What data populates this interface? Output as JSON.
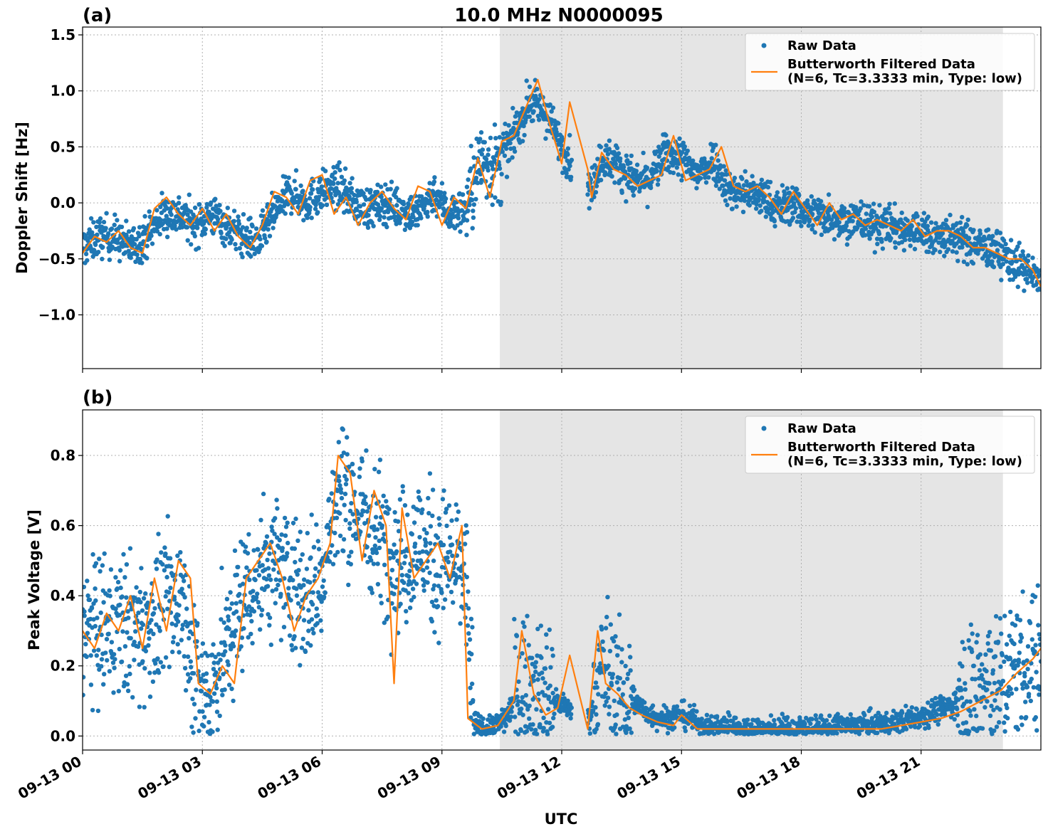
{
  "title": "10.0 MHz N0000095",
  "xlabel": "UTC",
  "colors": {
    "raw": "#1f77b4",
    "filtered": "#ff7f0e",
    "shade": "#e5e5e5"
  },
  "legend": {
    "raw_label": "Raw Data",
    "filtered_label_line1": "Butterworth Filtered Data",
    "filtered_label_line2": "(N=6, Tc=3.3333 min, Type: low)"
  },
  "chart_data": [
    {
      "type": "scatter",
      "panel_label": "(a)",
      "ylabel": "Doppler Shift [Hz]",
      "x_axis": {
        "type": "time",
        "start": "09-13 00:00",
        "end": "09-14 00:00",
        "ticks": [
          "09-13 00",
          "09-13 03",
          "09-13 06",
          "09-13 09",
          "09-13 12",
          "09-13 15",
          "09-13 18",
          "09-13 21"
        ]
      },
      "ylim": [
        -1.48,
        1.57
      ],
      "yticks": [
        -1.0,
        -0.5,
        0.0,
        0.5,
        1.0,
        1.5
      ],
      "ytick_labels": [
        "−1.0",
        "−0.5",
        "0.0",
        "0.5",
        "1.0",
        "1.5"
      ],
      "shaded_region_hours": [
        10.45,
        23.05
      ],
      "grid": true,
      "legend_position": "top-right",
      "series": [
        {
          "name": "Butterworth Filtered Data",
          "style": "line",
          "x_hours": [
            0,
            0.3,
            0.6,
            0.9,
            1.2,
            1.5,
            1.8,
            2.1,
            2.4,
            2.7,
            3.0,
            3.3,
            3.6,
            3.9,
            4.2,
            4.5,
            4.8,
            5.1,
            5.4,
            5.7,
            6.0,
            6.3,
            6.6,
            6.9,
            7.2,
            7.5,
            7.8,
            8.1,
            8.4,
            8.7,
            9.0,
            9.3,
            9.6,
            9.9,
            10.2,
            10.5,
            10.8,
            11.1,
            11.4,
            11.7,
            12.0,
            12.2,
            12.65,
            12.75,
            13.0,
            13.3,
            13.6,
            13.9,
            14.2,
            14.5,
            14.8,
            15.1,
            15.4,
            15.7,
            16.0,
            16.3,
            16.6,
            16.9,
            17.2,
            17.5,
            17.8,
            18.1,
            18.4,
            18.7,
            19.0,
            19.3,
            19.6,
            19.9,
            20.2,
            20.5,
            20.8,
            21.1,
            21.4,
            21.7,
            22.0,
            22.3,
            22.6,
            22.9,
            23.2,
            23.5,
            23.8,
            24.0
          ],
          "y": [
            -0.45,
            -0.3,
            -0.35,
            -0.25,
            -0.4,
            -0.45,
            -0.05,
            0.05,
            -0.1,
            -0.2,
            -0.05,
            -0.25,
            -0.1,
            -0.3,
            -0.4,
            -0.2,
            0.1,
            0.05,
            -0.1,
            0.2,
            0.25,
            -0.1,
            0.05,
            -0.2,
            0.0,
            0.1,
            -0.05,
            -0.15,
            0.15,
            0.1,
            -0.2,
            0.05,
            -0.05,
            0.4,
            0.05,
            0.55,
            0.6,
            0.85,
            1.1,
            0.7,
            0.35,
            0.9,
            0.3,
            0.05,
            0.45,
            0.3,
            0.25,
            0.15,
            0.2,
            0.25,
            0.6,
            0.2,
            0.25,
            0.3,
            0.5,
            0.15,
            0.1,
            0.15,
            0.05,
            -0.1,
            0.1,
            -0.05,
            -0.2,
            0.0,
            -0.15,
            -0.1,
            -0.2,
            -0.15,
            -0.2,
            -0.25,
            -0.15,
            -0.3,
            -0.25,
            -0.25,
            -0.3,
            -0.4,
            -0.4,
            -0.45,
            -0.5,
            -0.5,
            -0.6,
            -0.75
          ]
        },
        {
          "name": "Raw Data",
          "style": "points",
          "spread": 0.2,
          "x_hours": [
            0,
            0.4,
            0.8,
            1.2,
            1.6,
            2.0,
            2.4,
            2.8,
            3.2,
            3.6,
            4.0,
            4.4,
            4.8,
            5.2,
            5.6,
            6.0,
            6.4,
            6.8,
            7.2,
            7.6,
            8.0,
            8.4,
            8.8,
            9.2,
            9.6,
            10.0,
            10.4,
            10.8,
            11.2,
            11.6,
            12.0,
            12.7,
            13.0,
            13.4,
            13.8,
            14.2,
            14.6,
            15.0,
            15.4,
            15.8,
            16.2,
            16.6,
            17.0,
            17.4,
            17.8,
            18.2,
            18.6,
            19.0,
            19.4,
            19.8,
            20.2,
            20.6,
            21.0,
            21.4,
            21.8,
            22.2,
            22.6,
            23.0,
            23.4,
            23.8,
            24.0
          ],
          "y": [
            -0.4,
            -0.3,
            -0.3,
            -0.4,
            -0.3,
            -0.1,
            -0.1,
            -0.2,
            -0.1,
            -0.2,
            -0.3,
            -0.35,
            -0.1,
            0.1,
            0.0,
            0.1,
            0.15,
            0.0,
            -0.05,
            0.0,
            -0.05,
            -0.1,
            0.1,
            -0.1,
            -0.05,
            0.4,
            0.3,
            0.6,
            0.9,
            0.8,
            0.5,
            0.1,
            0.4,
            0.35,
            0.2,
            0.2,
            0.45,
            0.4,
            0.25,
            0.4,
            0.1,
            0.1,
            0.05,
            -0.05,
            0.0,
            -0.1,
            -0.1,
            -0.15,
            -0.15,
            -0.2,
            -0.2,
            -0.25,
            -0.25,
            -0.3,
            -0.3,
            -0.35,
            -0.4,
            -0.45,
            -0.55,
            -0.65,
            -0.7
          ]
        }
      ]
    },
    {
      "type": "scatter",
      "panel_label": "(b)",
      "ylabel": "Peak Voltage [V]",
      "x_axis": {
        "type": "time",
        "start": "09-13 00:00",
        "end": "09-14 00:00",
        "ticks": [
          "09-13 00",
          "09-13 03",
          "09-13 06",
          "09-13 09",
          "09-13 12",
          "09-13 15",
          "09-13 18",
          "09-13 21"
        ]
      },
      "ylim": [
        -0.04,
        0.93
      ],
      "yticks": [
        0.0,
        0.2,
        0.4,
        0.6,
        0.8
      ],
      "ytick_labels": [
        "0.0",
        "0.2",
        "0.4",
        "0.6",
        "0.8"
      ],
      "shaded_region_hours": [
        10.45,
        23.05
      ],
      "grid": true,
      "legend_position": "top-right",
      "series": [
        {
          "name": "Butterworth Filtered Data",
          "style": "line",
          "x_hours": [
            0,
            0.3,
            0.6,
            0.9,
            1.2,
            1.5,
            1.8,
            2.1,
            2.4,
            2.7,
            2.9,
            3.2,
            3.5,
            3.8,
            4.1,
            4.4,
            4.7,
            5.0,
            5.3,
            5.6,
            5.9,
            6.2,
            6.4,
            6.7,
            7.0,
            7.3,
            7.6,
            7.8,
            8.0,
            8.3,
            8.6,
            8.9,
            9.2,
            9.5,
            9.65,
            10.0,
            10.4,
            10.8,
            11.0,
            11.3,
            11.6,
            11.9,
            12.2,
            12.65,
            12.9,
            13.1,
            13.4,
            13.7,
            14.0,
            14.4,
            14.8,
            15.0,
            15.4,
            16.0,
            17.0,
            18.0,
            19.0,
            20.0,
            21.0,
            21.5,
            22.0,
            22.5,
            23.0,
            23.4,
            23.8,
            24.0
          ],
          "y": [
            0.3,
            0.25,
            0.35,
            0.3,
            0.4,
            0.25,
            0.45,
            0.3,
            0.5,
            0.45,
            0.15,
            0.12,
            0.2,
            0.15,
            0.45,
            0.5,
            0.55,
            0.45,
            0.3,
            0.4,
            0.45,
            0.55,
            0.8,
            0.75,
            0.5,
            0.7,
            0.6,
            0.15,
            0.65,
            0.45,
            0.5,
            0.55,
            0.45,
            0.6,
            0.05,
            0.02,
            0.03,
            0.1,
            0.3,
            0.12,
            0.06,
            0.08,
            0.23,
            0.02,
            0.3,
            0.15,
            0.12,
            0.08,
            0.06,
            0.04,
            0.03,
            0.06,
            0.02,
            0.02,
            0.02,
            0.02,
            0.02,
            0.02,
            0.04,
            0.05,
            0.07,
            0.1,
            0.13,
            0.18,
            0.22,
            0.25
          ]
        },
        {
          "name": "Raw Data",
          "style": "points",
          "spread": 0.22,
          "x_hours": [
            0,
            0.5,
            1.0,
            1.5,
            2.0,
            2.5,
            2.9,
            3.2,
            3.6,
            4.0,
            4.4,
            4.8,
            5.2,
            5.6,
            6.0,
            6.4,
            6.8,
            7.2,
            7.6,
            8.0,
            8.4,
            8.8,
            9.2,
            9.6,
            9.8,
            10.2,
            10.6,
            11.0,
            11.4,
            11.8,
            12.2,
            12.7,
            13.0,
            13.4,
            13.8,
            14.2,
            14.6,
            15.0,
            15.6,
            16.2,
            16.8,
            17.4,
            18.0,
            18.6,
            19.2,
            19.8,
            20.4,
            21.0,
            21.6,
            22.2,
            22.8,
            23.4,
            24.0
          ],
          "y": [
            0.3,
            0.3,
            0.32,
            0.3,
            0.35,
            0.4,
            0.15,
            0.12,
            0.25,
            0.4,
            0.45,
            0.5,
            0.45,
            0.4,
            0.45,
            0.7,
            0.65,
            0.6,
            0.55,
            0.5,
            0.55,
            0.5,
            0.5,
            0.45,
            0.03,
            0.02,
            0.05,
            0.15,
            0.15,
            0.1,
            0.08,
            0.05,
            0.2,
            0.12,
            0.1,
            0.06,
            0.05,
            0.06,
            0.03,
            0.03,
            0.02,
            0.02,
            0.02,
            0.02,
            0.03,
            0.03,
            0.04,
            0.06,
            0.08,
            0.12,
            0.15,
            0.2,
            0.22
          ]
        }
      ]
    }
  ]
}
